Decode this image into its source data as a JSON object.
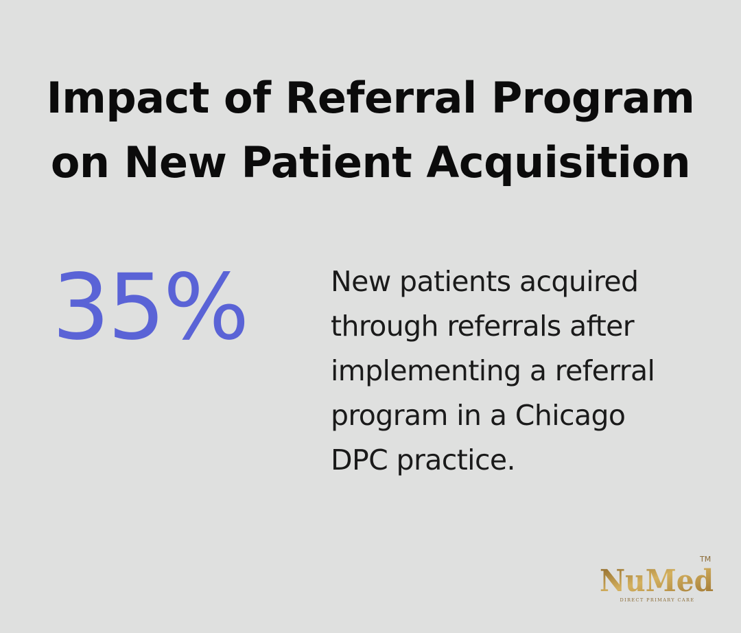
{
  "title": {
    "line1": "Impact of Referral Program",
    "line2": "on New Patient Acquisition"
  },
  "stat": {
    "value": "35%",
    "color": "#5a63d6"
  },
  "description": {
    "lines": [
      "New patients acquired",
      "through referrals after",
      "implementing a referral",
      "program in a Chicago",
      "DPC practice."
    ]
  },
  "logo": {
    "brand": "NuMed",
    "trademark": "TM",
    "tagline": "DIRECT PRIMARY CARE",
    "color": "#b8913a"
  }
}
